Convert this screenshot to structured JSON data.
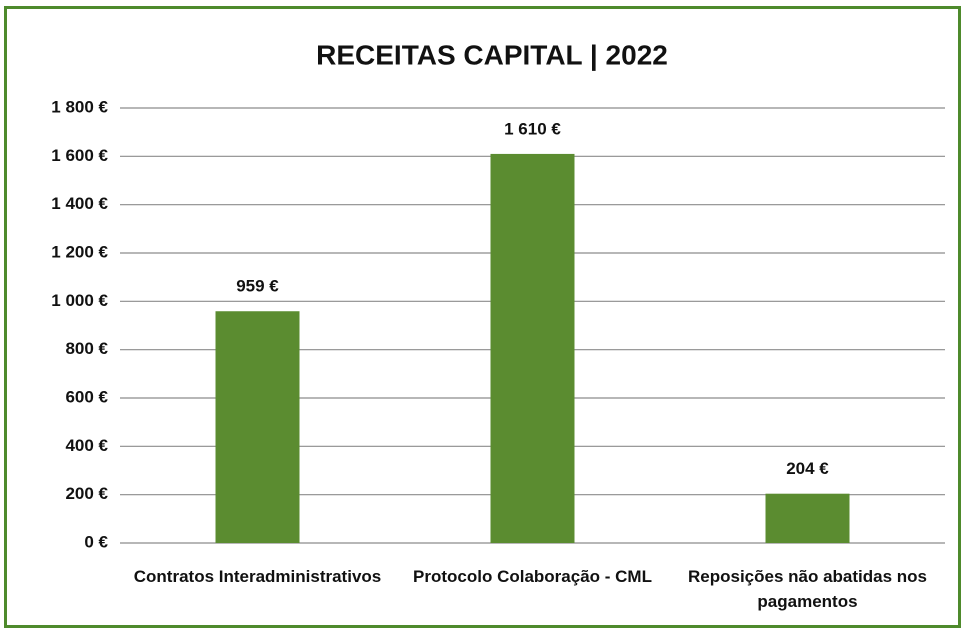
{
  "chart_data": {
    "type": "bar",
    "title": "RECEITAS CAPITAL | 2022",
    "categories": [
      "Contratos Interadministrativos",
      "Protocolo Colaboração - CML",
      "Reposições não abatidas nos pagamentos"
    ],
    "values": [
      959,
      1610,
      204
    ],
    "value_labels": [
      "959 €",
      "1 610 €",
      "204 €"
    ],
    "color": "#5b8c30",
    "ylim": [
      0,
      1800
    ],
    "yticks": [
      {
        "value": 0,
        "label": "0 €"
      },
      {
        "value": 200,
        "label": "200 €"
      },
      {
        "value": 400,
        "label": "400 €"
      },
      {
        "value": 600,
        "label": "600 €"
      },
      {
        "value": 800,
        "label": "800 €"
      },
      {
        "value": 1000,
        "label": "1 000 €"
      },
      {
        "value": 1200,
        "label": "1 200 €"
      },
      {
        "value": 1400,
        "label": "1 400 €"
      },
      {
        "value": 1600,
        "label": "1 600 €"
      },
      {
        "value": 1800,
        "label": "1 800 €"
      }
    ],
    "grid": true
  }
}
